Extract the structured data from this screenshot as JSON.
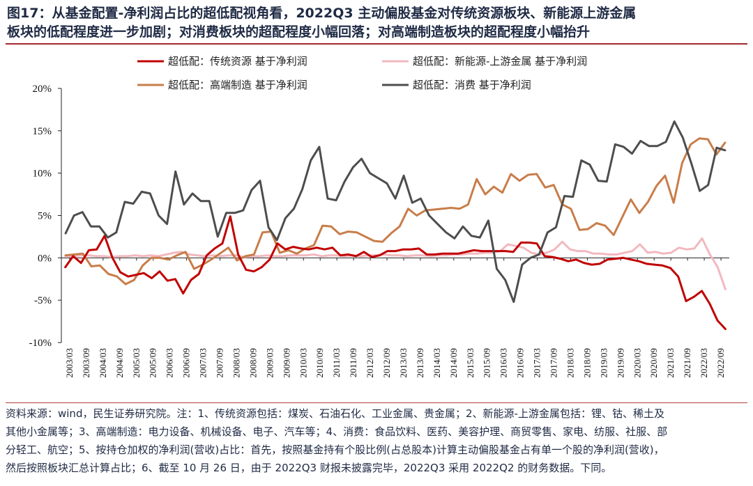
{
  "header": {
    "title_line1": "图17：从基金配置-净利润占比的超低配视角看，2022Q3 主动偏股基金对传统资源板块、新能源上游金属",
    "title_line2": "板块的低配程度进一步加剧；对消费板块的超配程度小幅回落；对高端制造板块的超配程度小幅抬升"
  },
  "footer": {
    "lines": [
      "资料来源：wind，民生证券研究院。注：1、传统资源包括：煤炭、石油石化、工业金属、贵金属；2、新能源-上游金属包括：锂、钴、稀土及",
      "其他小金属等；3、高端制造：电力设备、机械设备、电子、汽车等；4、消费：食品饮料、医药、美容护理、商贸零售、家电、纺服、社服、部",
      "分轻工、航空；5、按持仓加权的净利润(营收)占比：首先，按照基金持有个股比例(占总股本)计算主动偏股基金占有单一个股的净利润(营收)，",
      "然后按照板块汇总计算占比；6、截至 10 月 26 日，由于 2022Q3 财报未披露完毕，2022Q3 采用 2022Q2 的财务数据。下同。"
    ]
  },
  "chart_data": {
    "type": "line",
    "title": "",
    "xlabel": "",
    "ylabel": "",
    "ylim": [
      -10,
      20
    ],
    "yticks": [
      -10,
      -5,
      0,
      5,
      10,
      15,
      20
    ],
    "ytick_labels": [
      "-10%",
      "-5%",
      "0%",
      "5%",
      "10%",
      "15%",
      "20%"
    ],
    "xtick_labels": [
      "2003/03",
      "2003/09",
      "2004/03",
      "2004/09",
      "2005/03",
      "2005/09",
      "2006/03",
      "2006/09",
      "2007/03",
      "2007/09",
      "2008/03",
      "2008/09",
      "2009/03",
      "2009/09",
      "2010/03",
      "2010/09",
      "2011/03",
      "2011/09",
      "2012/03",
      "2012/09",
      "2013/03",
      "2013/09",
      "2014/03",
      "2014/09",
      "2015/03",
      "2015/09",
      "2016/03",
      "2016/09",
      "2017/03",
      "2017/09",
      "2018/03",
      "2018/09",
      "2019/03",
      "2019/09",
      "2020/03",
      "2020/09",
      "2021/03",
      "2021/09",
      "2022/03",
      "2022/09"
    ],
    "legend_position": "top",
    "series": [
      {
        "name": "超低配：传统资源 基于净利润",
        "color": "#c00000",
        "values": [
          -1.1,
          0.2,
          -0.6,
          0.9,
          1.0,
          2.6,
          0.0,
          -1.7,
          -2.2,
          -2.0,
          -1.8,
          -2.4,
          -1.6,
          -2.7,
          -2.5,
          -4.2,
          -2.6,
          -1.9,
          0.3,
          1.1,
          1.7,
          4.9,
          0.4,
          -1.4,
          -1.6,
          -1.1,
          -0.2,
          1.7,
          1.0,
          1.3,
          1.1,
          1.0,
          1.2,
          1.0,
          1.2,
          0.3,
          0.4,
          0.2,
          0.7,
          0.1,
          0.3,
          0.8,
          0.8,
          1.0,
          1.0,
          1.1,
          0.4,
          0.4,
          0.5,
          0.5,
          0.5,
          0.7,
          0.9,
          0.8,
          0.8,
          0.8,
          0.8,
          0.7,
          1.8,
          1.8,
          1.7,
          0.2,
          0.1,
          -0.1,
          -0.4,
          -0.2,
          -0.6,
          -0.8,
          -0.7,
          -0.2,
          -0.1,
          0.0,
          -0.2,
          -0.4,
          -0.7,
          -0.8,
          -0.9,
          -1.2,
          -2.2,
          -5.1,
          -4.6,
          -3.9,
          -5.4,
          -7.4,
          -8.4
        ]
      },
      {
        "name": "超低配：新能源-上游金属 基于净利润",
        "color": "#f2b8bf",
        "values": [
          0.2,
          0.2,
          0.3,
          0.3,
          0.2,
          0.2,
          0.1,
          0.2,
          0.2,
          0.3,
          0.2,
          0.3,
          0.2,
          0.4,
          0.6,
          0.7,
          0.4,
          0.3,
          0.2,
          0.3,
          0.2,
          0.3,
          0.3,
          0.1,
          0.2,
          0.2,
          0.3,
          0.2,
          0.2,
          0.3,
          0.3,
          0.3,
          0.4,
          0.2,
          0.3,
          0.3,
          0.2,
          0.3,
          0.2,
          0.3,
          0.3,
          0.4,
          0.3,
          0.3,
          0.2,
          0.3,
          0.3,
          0.2,
          0.3,
          0.3,
          0.4,
          0.4,
          0.5,
          0.5,
          0.6,
          0.6,
          0.8,
          1.6,
          1.4,
          1.2,
          0.6,
          0.4,
          0.6,
          1.0,
          1.9,
          1.0,
          0.8,
          0.8,
          0.5,
          0.5,
          0.4,
          0.4,
          0.6,
          0.8,
          1.6,
          0.6,
          0.7,
          0.5,
          0.6,
          1.2,
          1.0,
          1.1,
          2.3,
          0.4,
          -1.1,
          -3.7
        ]
      },
      {
        "name": "超低配：高端制造 基于净利润",
        "color": "#c87d4a",
        "values": [
          0.3,
          0.4,
          0.5,
          -1.0,
          -0.9,
          -1.9,
          -2.2,
          -3.1,
          -2.6,
          -0.9,
          0.0,
          0.0,
          -0.2,
          0.3,
          0.7,
          -1.3,
          -0.8,
          -0.2,
          0.5,
          1.2,
          -0.3,
          0.2,
          0.4,
          3.0,
          3.1,
          0.6,
          0.9,
          0.5,
          1.1,
          1.5,
          3.8,
          3.7,
          2.8,
          3.1,
          3.0,
          2.5,
          2.0,
          1.9,
          2.9,
          3.7,
          5.8,
          5.0,
          5.6,
          5.7,
          5.8,
          5.9,
          5.8,
          6.3,
          9.3,
          7.5,
          8.4,
          7.7,
          9.9,
          9.1,
          9.8,
          9.9,
          8.3,
          8.6,
          6.3,
          5.8,
          3.3,
          3.4,
          4.1,
          3.8,
          2.7,
          4.8,
          6.9,
          5.3,
          6.6,
          8.5,
          9.7,
          6.5,
          11.2,
          13.4,
          14.1,
          14.0,
          12.2,
          13.6
        ]
      },
      {
        "name": "超低配：消费 基于净利润",
        "color": "#4d4d4d",
        "values": [
          2.9,
          5.0,
          5.4,
          3.7,
          3.7,
          2.4,
          3.0,
          6.6,
          6.4,
          7.8,
          7.6,
          5.0,
          4.0,
          10.2,
          6.3,
          7.6,
          6.7,
          6.7,
          2.5,
          5.3,
          5.3,
          5.6,
          8.0,
          9.1,
          3.6,
          2.1,
          4.7,
          5.8,
          8.1,
          11.5,
          13.1,
          7.0,
          6.8,
          9.0,
          10.7,
          11.7,
          10.0,
          9.4,
          8.8,
          7.0,
          9.7,
          6.5,
          7.0,
          5.0,
          4.0,
          3.0,
          2.3,
          3.7,
          2.6,
          2.4,
          4.4,
          -1.3,
          -2.6,
          -5.2,
          -0.8,
          0.0,
          0.4,
          3.0,
          3.6,
          7.3,
          7.2,
          11.5,
          11.0,
          9.1,
          9.0,
          13.4,
          13.1,
          12.3,
          13.8,
          13.2,
          13.2,
          13.7,
          16.1,
          14.2,
          11.2,
          7.9,
          8.6,
          13.0,
          12.7
        ]
      }
    ]
  }
}
